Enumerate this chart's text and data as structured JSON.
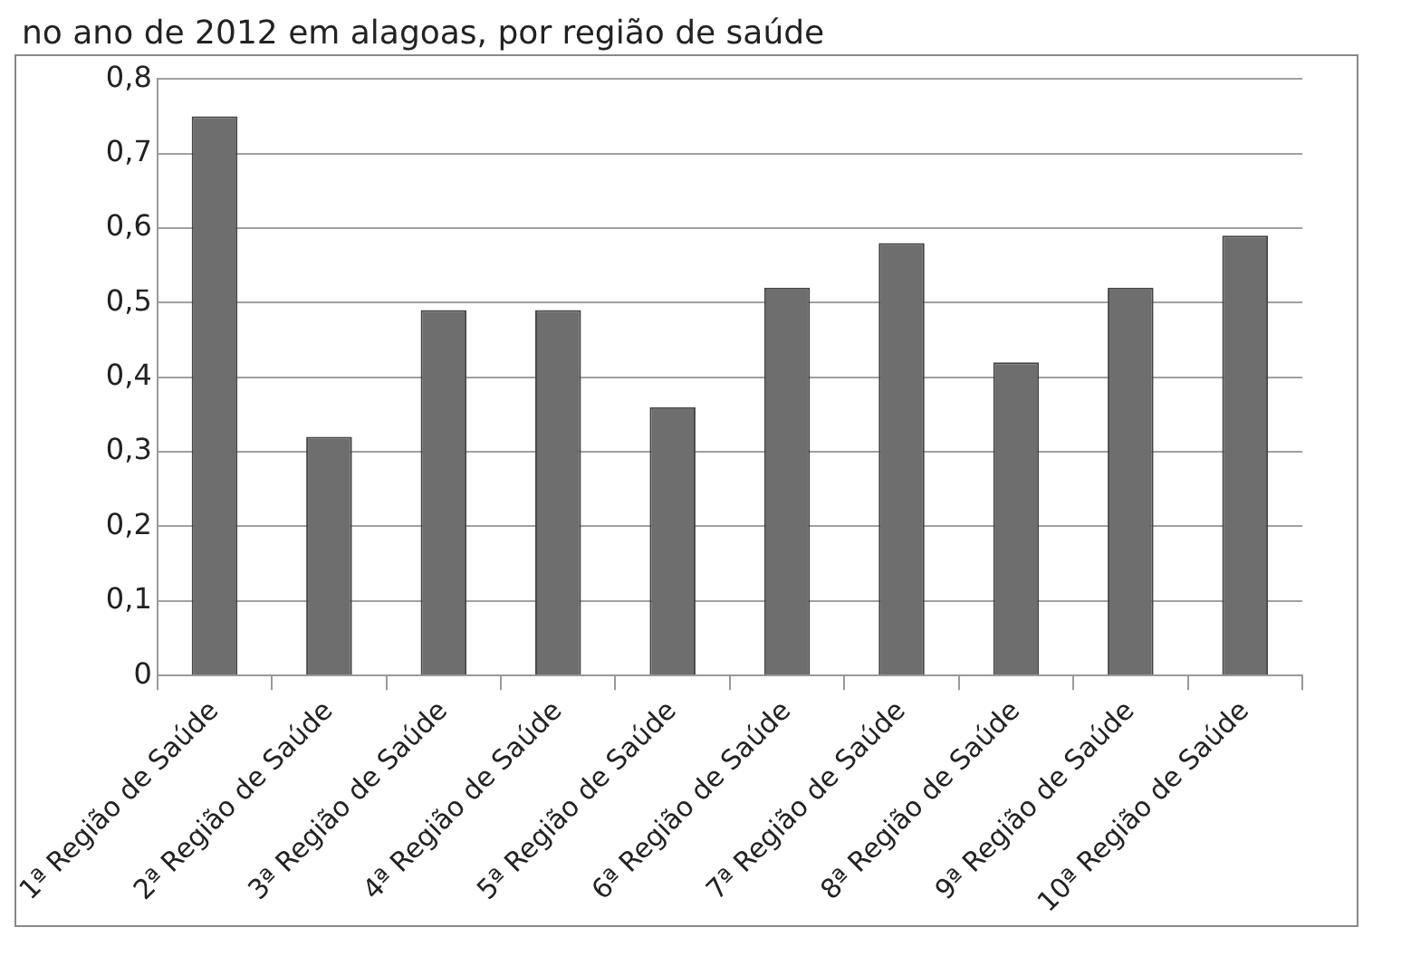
{
  "chart_data": {
    "type": "bar",
    "title": "no ano de 2012 em alagoas, por região de saúde",
    "categories": [
      "1ª Região de Saúde",
      "2ª Região de Saúde",
      "3ª Região de Saúde",
      "4ª Região de Saúde",
      "5ª Região de Saúde",
      "6ª Região de Saúde",
      "7ª Região de Saúde",
      "8ª Região de Saúde",
      "9ª Região de Saúde",
      "10ª Região de Saúde"
    ],
    "values": [
      0.75,
      0.32,
      0.49,
      0.49,
      0.36,
      0.52,
      0.58,
      0.42,
      0.52,
      0.59
    ],
    "color": "#6e6e6e",
    "ylim": [
      0,
      0.8
    ],
    "yticks": [
      {
        "value": 0,
        "label": "0"
      },
      {
        "value": 0.1,
        "label": "0,1"
      },
      {
        "value": 0.2,
        "label": "0,2"
      },
      {
        "value": 0.3,
        "label": "0,3"
      },
      {
        "value": 0.4,
        "label": "0,4"
      },
      {
        "value": 0.5,
        "label": "0,5"
      },
      {
        "value": 0.6,
        "label": "0,6"
      },
      {
        "value": 0.7,
        "label": "0,7"
      },
      {
        "value": 0.8,
        "label": "0,8"
      }
    ],
    "grid": "y"
  }
}
